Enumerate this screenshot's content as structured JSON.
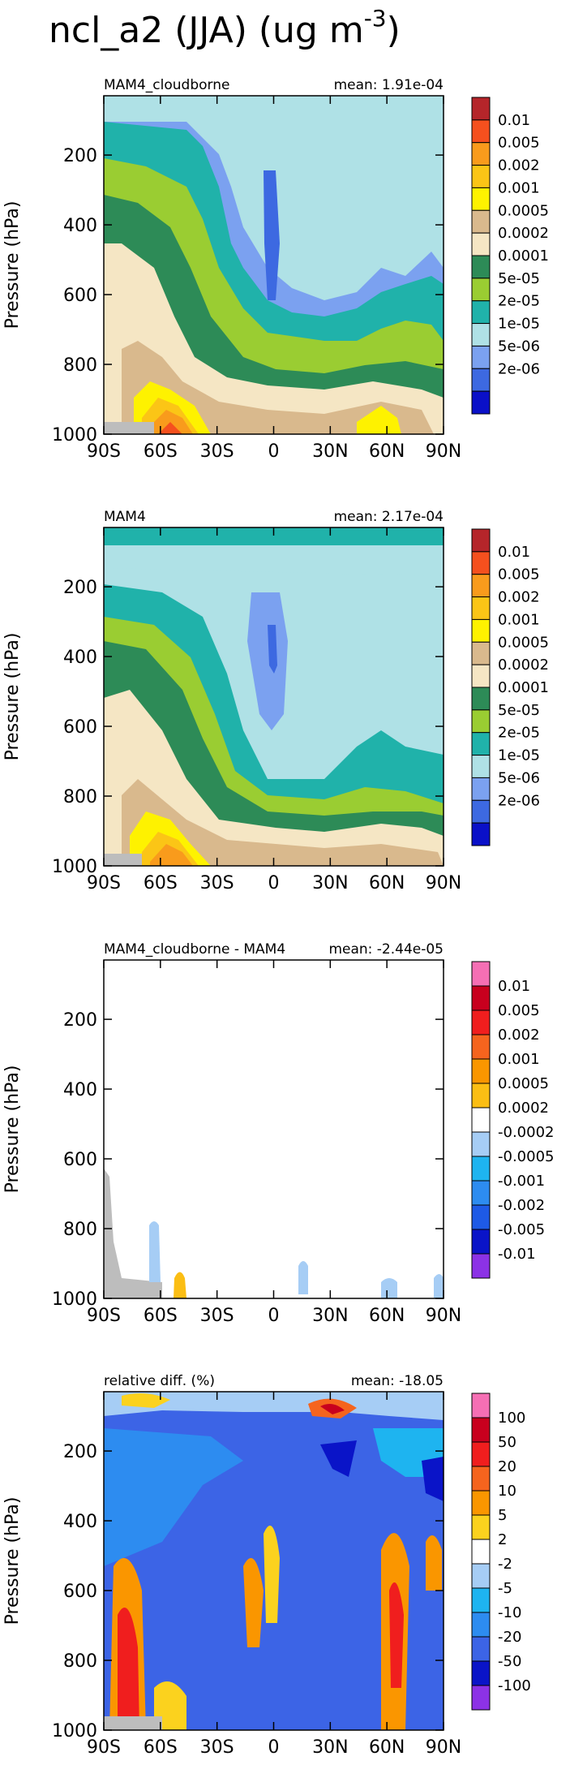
{
  "figure": {
    "title_main": "ncl_a2 (JJA) (ug m",
    "title_exp": "-3",
    "title_close": ")"
  },
  "chart_data": [
    {
      "type": "heatmap",
      "title_left": "MAM4_cloudborne",
      "title_right": "mean: 1.91e-04",
      "ylabel": "Pressure (hPa)",
      "xticks": [
        "90S",
        "60S",
        "30S",
        "0",
        "30N",
        "60N",
        "90N"
      ],
      "yticks": [
        "200",
        "400",
        "600",
        "800",
        "1000"
      ],
      "ytick_values": [
        200,
        400,
        600,
        800,
        1000
      ],
      "xlim": [
        -90,
        90
      ],
      "ylim": [
        1000,
        30
      ],
      "legend_labels": [
        "0.01",
        "0.005",
        "0.002",
        "0.001",
        "0.0005",
        "0.0002",
        "0.0001",
        "5e-05",
        "2e-05",
        "1e-05",
        "5e-06",
        "2e-06"
      ],
      "legend_colors": [
        "#b5252a",
        "#f5501e",
        "#f99b1c",
        "#fbc516",
        "#fef200",
        "#d9b98d",
        "#f5e6c4",
        "#2d8b57",
        "#9acd32",
        "#20b2aa",
        "#afe1e6",
        "#7ba1f0",
        "#3d69e1",
        "#0a10c8"
      ]
    },
    {
      "type": "heatmap",
      "title_left": "MAM4",
      "title_right": "mean: 2.17e-04",
      "ylabel": "Pressure (hPa)",
      "xticks": [
        "90S",
        "60S",
        "30S",
        "0",
        "30N",
        "60N",
        "90N"
      ],
      "yticks": [
        "200",
        "400",
        "600",
        "800",
        "1000"
      ],
      "ytick_values": [
        200,
        400,
        600,
        800,
        1000
      ],
      "xlim": [
        -90,
        90
      ],
      "ylim": [
        1000,
        30
      ],
      "legend_labels": [
        "0.01",
        "0.005",
        "0.002",
        "0.001",
        "0.0005",
        "0.0002",
        "0.0001",
        "5e-05",
        "2e-05",
        "1e-05",
        "5e-06",
        "2e-06"
      ],
      "legend_colors": [
        "#b5252a",
        "#f5501e",
        "#f99b1c",
        "#fbc516",
        "#fef200",
        "#d9b98d",
        "#f5e6c4",
        "#2d8b57",
        "#9acd32",
        "#20b2aa",
        "#afe1e6",
        "#7ba1f0",
        "#3d69e1",
        "#0a10c8"
      ]
    },
    {
      "type": "heatmap",
      "title_left": "MAM4_cloudborne - MAM4",
      "title_right": "mean: -2.44e-05",
      "ylabel": "Pressure (hPa)",
      "xticks": [
        "90S",
        "60S",
        "30S",
        "0",
        "30N",
        "60N",
        "90N"
      ],
      "yticks": [
        "200",
        "400",
        "600",
        "800",
        "1000"
      ],
      "ytick_values": [
        200,
        400,
        600,
        800,
        1000
      ],
      "xlim": [
        -90,
        90
      ],
      "ylim": [
        1000,
        30
      ],
      "legend_labels": [
        "0.01",
        "0.005",
        "0.002",
        "0.001",
        "0.0005",
        "0.0002",
        "-0.0002",
        "-0.0005",
        "-0.001",
        "-0.002",
        "-0.005",
        "-0.01"
      ],
      "legend_colors": [
        "#f56fb4",
        "#c8001e",
        "#f01e1e",
        "#f5641e",
        "#fa9600",
        "#fbbe14",
        "#ffffff",
        "#a6cdf5",
        "#1eb4f0",
        "#2d8cf0",
        "#1e5ae6",
        "#0a14c8",
        "#8c32e6"
      ]
    },
    {
      "type": "heatmap",
      "title_left": "relative diff. (%)",
      "title_right": "mean: -18.05",
      "ylabel": "Pressure (hPa)",
      "xticks": [
        "90S",
        "60S",
        "30S",
        "0",
        "30N",
        "60N",
        "90N"
      ],
      "yticks": [
        "200",
        "400",
        "600",
        "800",
        "1000"
      ],
      "ytick_values": [
        200,
        400,
        600,
        800,
        1000
      ],
      "xlim": [
        -90,
        90
      ],
      "ylim": [
        1000,
        30
      ],
      "legend_labels": [
        "100",
        "50",
        "20",
        "10",
        "5",
        "2",
        "-2",
        "-5",
        "-10",
        "-20",
        "-50",
        "-100"
      ],
      "legend_colors": [
        "#f56fb4",
        "#c8001e",
        "#f01e1e",
        "#f5641e",
        "#fa9600",
        "#fbd21e",
        "#ffffff",
        "#a6cdf5",
        "#1eb4f0",
        "#2d8cf0",
        "#3c64e6",
        "#0a14c8",
        "#8c32e6"
      ]
    }
  ]
}
